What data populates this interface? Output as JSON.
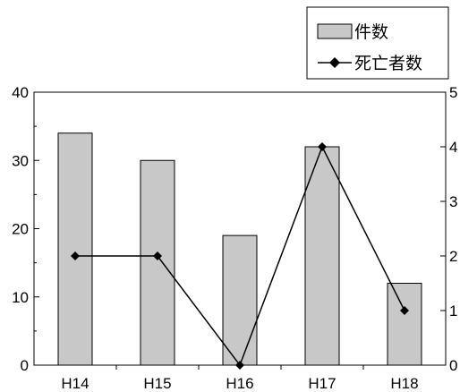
{
  "chart_data": {
    "type": "bar",
    "categories": [
      "H14",
      "H15",
      "H16",
      "H17",
      "H18"
    ],
    "series": [
      {
        "name": "件数",
        "type": "bar",
        "axis": "left",
        "values": [
          34,
          30,
          19,
          32,
          12
        ],
        "color": "#c8c8c8"
      },
      {
        "name": "死亡者数",
        "type": "line",
        "axis": "right",
        "values": [
          2,
          2,
          0,
          4,
          1
        ],
        "color": "#000000",
        "marker": "diamond"
      }
    ],
    "y_left": {
      "ylim": [
        0,
        40
      ],
      "ticks": [
        "0",
        "10",
        "20",
        "30",
        "40"
      ]
    },
    "y_right": {
      "ylim": [
        0,
        5
      ],
      "ticks": [
        "0",
        "1",
        "2",
        "3",
        "4",
        "5"
      ]
    },
    "legend": {
      "placement": "top-right"
    },
    "grid": false
  }
}
